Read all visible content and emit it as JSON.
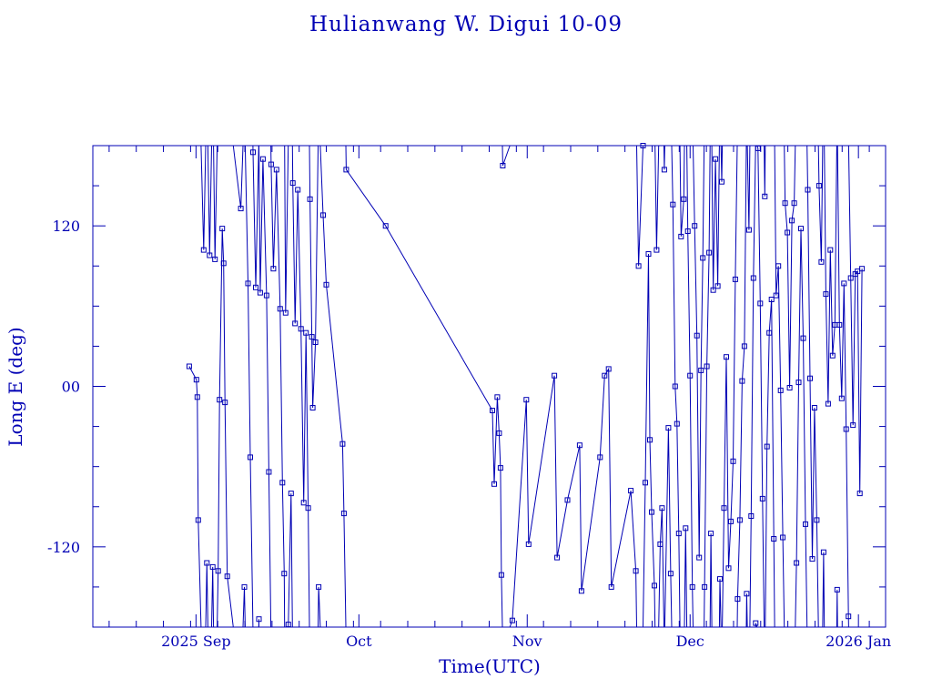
{
  "title": "Hulianwang W. Digui 10-09",
  "colors": {
    "ink": "#0000b4",
    "background": "#ffffff"
  },
  "chart_data": {
    "type": "line",
    "title": "Hulianwang W. Digui 10-09",
    "xlabel": "Time(UTC)",
    "ylabel": "Long E (deg)",
    "ylim": [
      -180,
      180
    ],
    "xlim": [
      "2025-08-13",
      "2026-01-06"
    ],
    "yticks": [
      {
        "value": 120,
        "label": "120"
      },
      {
        "value": 0,
        "label": "00"
      },
      {
        "value": -120,
        "label": "-120"
      }
    ],
    "xticks": [
      {
        "date": "2025-09-01",
        "label": "2025 Sep"
      },
      {
        "date": "2025-10-01",
        "label": "Oct"
      },
      {
        "date": "2025-11-01",
        "label": "Nov"
      },
      {
        "date": "2025-12-01",
        "label": "Dec"
      },
      {
        "date": "2026-01-01",
        "label": "2026 Jan"
      }
    ],
    "grid": false,
    "marker": "square",
    "wrap": true,
    "series": [
      {
        "points": [
          [
            "2025-08-30 18:00",
            15
          ],
          [
            "2025-09-01 02:00",
            5
          ],
          [
            "2025-09-01 06:00",
            -8
          ],
          [
            "2025-09-01 10:00",
            -100
          ],
          [
            "2025-09-02 10:00",
            102
          ],
          [
            "2025-09-03 00:00",
            -132
          ],
          [
            "2025-09-03 12:00",
            98
          ],
          [
            "2025-09-04 02:00",
            -135
          ],
          [
            "2025-09-04 12:00",
            95
          ],
          [
            "2025-09-05 02:00",
            -138
          ],
          [
            "2025-09-05 08:00",
            -10
          ],
          [
            "2025-09-05 20:00",
            118
          ],
          [
            "2025-09-06 02:00",
            92
          ],
          [
            "2025-09-06 08:00",
            -12
          ],
          [
            "2025-09-06 18:00",
            -142
          ],
          [
            "2025-09-09 06:00",
            133
          ],
          [
            "2025-09-09 22:00",
            -150
          ],
          [
            "2025-09-10 14:00",
            77
          ],
          [
            "2025-09-11 00:00",
            -53
          ],
          [
            "2025-09-11 12:00",
            175
          ],
          [
            "2025-09-12 00:00",
            74
          ],
          [
            "2025-09-12 14:00",
            -174
          ],
          [
            "2025-09-12 20:00",
            70
          ],
          [
            "2025-09-13 08:00",
            170
          ],
          [
            "2025-09-14 00:00",
            68
          ],
          [
            "2025-09-14 10:00",
            -64
          ],
          [
            "2025-09-14 20:00",
            166
          ],
          [
            "2025-09-15 06:00",
            88
          ],
          [
            "2025-09-15 20:00",
            162
          ],
          [
            "2025-09-16 12:00",
            58
          ],
          [
            "2025-09-16 22:00",
            -72
          ],
          [
            "2025-09-17 06:00",
            -140
          ],
          [
            "2025-09-17 12:00",
            55
          ],
          [
            "2025-09-18 00:00",
            -178
          ],
          [
            "2025-09-18 12:00",
            -80
          ],
          [
            "2025-09-18 20:00",
            152
          ],
          [
            "2025-09-19 06:00",
            47
          ],
          [
            "2025-09-19 18:00",
            147
          ],
          [
            "2025-09-20 08:00",
            43
          ],
          [
            "2025-09-20 20:00",
            -87
          ],
          [
            "2025-09-21 06:00",
            40
          ],
          [
            "2025-09-21 16:00",
            -91
          ],
          [
            "2025-09-22 00:00",
            140
          ],
          [
            "2025-09-22 08:00",
            37
          ],
          [
            "2025-09-22 12:00",
            -16
          ],
          [
            "2025-09-23 00:00",
            33
          ],
          [
            "2025-09-23 14:00",
            -150
          ],
          [
            "2025-09-24 10:00",
            128
          ],
          [
            "2025-09-25 00:00",
            76
          ],
          [
            "2025-09-28 00:00",
            -43
          ],
          [
            "2025-09-28 06:00",
            -95
          ],
          [
            "2025-09-28 16:00",
            162
          ],
          [
            "2025-10-05 22:00",
            120
          ],
          [
            "2025-10-25 14:00",
            -18
          ],
          [
            "2025-10-25 22:00",
            -73
          ],
          [
            "2025-10-26 12:00",
            -8
          ],
          [
            "2025-10-26 20:00",
            -35
          ],
          [
            "2025-10-27 02:00",
            -61
          ],
          [
            "2025-10-27 06:00",
            -141
          ],
          [
            "2025-10-27 12:00",
            165
          ],
          [
            "2025-10-29 06:00",
            -175
          ],
          [
            "2025-10-31 20:00",
            -10
          ],
          [
            "2025-11-01 06:00",
            -118
          ],
          [
            "2025-11-06 00:00",
            8
          ],
          [
            "2025-11-06 12:00",
            -128
          ],
          [
            "2025-11-08 10:00",
            -85
          ],
          [
            "2025-11-10 16:00",
            -44
          ],
          [
            "2025-11-11 00:00",
            -153
          ],
          [
            "2025-11-14 10:00",
            -53
          ],
          [
            "2025-11-15 06:00",
            8
          ],
          [
            "2025-11-16 00:00",
            13
          ],
          [
            "2025-11-16 12:00",
            -150
          ],
          [
            "2025-11-20 02:00",
            -78
          ],
          [
            "2025-11-21 00:00",
            -138
          ],
          [
            "2025-11-21 12:00",
            90
          ],
          [
            "2025-11-22 08:00",
            180
          ],
          [
            "2025-11-22 18:00",
            -72
          ],
          [
            "2025-11-23 08:00",
            99
          ],
          [
            "2025-11-23 14:00",
            -40
          ],
          [
            "2025-11-23 22:00",
            -94
          ],
          [
            "2025-11-24 10:00",
            -149
          ],
          [
            "2025-11-24 20:00",
            102
          ],
          [
            "2025-11-25 12:00",
            -118
          ],
          [
            "2025-11-25 20:00",
            -91
          ],
          [
            "2025-11-26 06:00",
            162
          ],
          [
            "2025-11-27 00:00",
            -31
          ],
          [
            "2025-11-27 10:00",
            -140
          ],
          [
            "2025-11-27 20:00",
            136
          ],
          [
            "2025-11-28 06:00",
            0
          ],
          [
            "2025-11-28 14:00",
            -28
          ],
          [
            "2025-11-28 22:00",
            -110
          ],
          [
            "2025-11-29 08:00",
            112
          ],
          [
            "2025-11-29 20:00",
            140
          ],
          [
            "2025-11-30 04:00",
            -106
          ],
          [
            "2025-11-30 14:00",
            116
          ],
          [
            "2025-12-01 00:00",
            8
          ],
          [
            "2025-12-01 10:00",
            -150
          ],
          [
            "2025-12-01 20:00",
            120
          ],
          [
            "2025-12-02 06:00",
            38
          ],
          [
            "2025-12-02 16:00",
            -128
          ],
          [
            "2025-12-03 00:00",
            12
          ],
          [
            "2025-12-03 08:00",
            96
          ],
          [
            "2025-12-03 16:00",
            -150
          ],
          [
            "2025-12-04 02:00",
            15
          ],
          [
            "2025-12-04 12:00",
            100
          ],
          [
            "2025-12-04 20:00",
            -110
          ],
          [
            "2025-12-05 06:00",
            72
          ],
          [
            "2025-12-05 16:00",
            170
          ],
          [
            "2025-12-06 02:00",
            75
          ],
          [
            "2025-12-06 12:00",
            -144
          ],
          [
            "2025-12-06 20:00",
            153
          ],
          [
            "2025-12-07 06:00",
            -91
          ],
          [
            "2025-12-07 16:00",
            22
          ],
          [
            "2025-12-08 02:00",
            -136
          ],
          [
            "2025-12-08 12:00",
            -101
          ],
          [
            "2025-12-08 22:00",
            -56
          ],
          [
            "2025-12-09 08:00",
            80
          ],
          [
            "2025-12-09 18:00",
            -159
          ],
          [
            "2025-12-10 04:00",
            -100
          ],
          [
            "2025-12-10 14:00",
            4
          ],
          [
            "2025-12-11 00:00",
            30
          ],
          [
            "2025-12-11 10:00",
            -155
          ],
          [
            "2025-12-11 20:00",
            117
          ],
          [
            "2025-12-12 06:00",
            -97
          ],
          [
            "2025-12-12 16:00",
            81
          ],
          [
            "2025-12-13 02:00",
            -177
          ],
          [
            "2025-12-13 12:00",
            178
          ],
          [
            "2025-12-13 22:00",
            62
          ],
          [
            "2025-12-14 08:00",
            -84
          ],
          [
            "2025-12-14 18:00",
            142
          ],
          [
            "2025-12-15 04:00",
            -45
          ],
          [
            "2025-12-15 14:00",
            40
          ],
          [
            "2025-12-16 00:00",
            65
          ],
          [
            "2025-12-16 10:00",
            -114
          ],
          [
            "2025-12-16 20:00",
            68
          ],
          [
            "2025-12-17 06:00",
            90
          ],
          [
            "2025-12-17 16:00",
            -3
          ],
          [
            "2025-12-18 02:00",
            -113
          ],
          [
            "2025-12-18 12:00",
            137
          ],
          [
            "2025-12-18 22:00",
            115
          ],
          [
            "2025-12-19 08:00",
            -1
          ],
          [
            "2025-12-19 18:00",
            124
          ],
          [
            "2025-12-20 04:00",
            137
          ],
          [
            "2025-12-20 14:00",
            -132
          ],
          [
            "2025-12-21 00:00",
            3
          ],
          [
            "2025-12-21 10:00",
            118
          ],
          [
            "2025-12-21 20:00",
            36
          ],
          [
            "2025-12-22 06:00",
            -103
          ],
          [
            "2025-12-22 16:00",
            147
          ],
          [
            "2025-12-23 02:00",
            6
          ],
          [
            "2025-12-23 12:00",
            -129
          ],
          [
            "2025-12-23 22:00",
            -16
          ],
          [
            "2025-12-24 08:00",
            -100
          ],
          [
            "2025-12-24 18:00",
            150
          ],
          [
            "2025-12-25 04:00",
            93
          ],
          [
            "2025-12-25 14:00",
            -124
          ],
          [
            "2025-12-26 00:00",
            69
          ],
          [
            "2025-12-26 10:00",
            -13
          ],
          [
            "2025-12-26 20:00",
            102
          ],
          [
            "2025-12-27 06:00",
            23
          ],
          [
            "2025-12-27 16:00",
            46
          ],
          [
            "2025-12-28 02:00",
            -152
          ],
          [
            "2025-12-28 12:00",
            46
          ],
          [
            "2025-12-28 22:00",
            -9
          ],
          [
            "2025-12-29 08:00",
            77
          ],
          [
            "2025-12-29 18:00",
            -32
          ],
          [
            "2025-12-30 04:00",
            -172
          ],
          [
            "2025-12-30 14:00",
            81
          ],
          [
            "2025-12-31 00:00",
            -29
          ],
          [
            "2025-12-31 10:00",
            84
          ],
          [
            "2025-12-31 20:00",
            86
          ],
          [
            "2026-01-01 06:00",
            -80
          ],
          [
            "2026-01-01 16:00",
            88
          ]
        ]
      }
    ]
  }
}
